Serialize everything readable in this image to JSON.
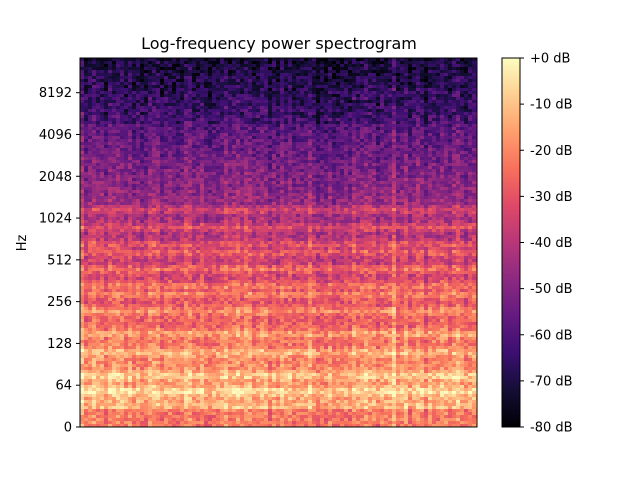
{
  "chart_data": {
    "type": "heatmap",
    "title": "Log-frequency power spectrogram",
    "xlabel": "",
    "ylabel": "Hz",
    "y_scale": "log",
    "y_ticks": [
      "0",
      "64",
      "128",
      "256",
      "512",
      "1024",
      "2048",
      "4096",
      "8192"
    ],
    "y_tick_values": [
      0,
      64,
      128,
      256,
      512,
      1024,
      2048,
      4096,
      8192
    ],
    "x_ticks": [],
    "colormap": "magma",
    "colorbar": {
      "ticks": [
        "+0 dB",
        "-10 dB",
        "-20 dB",
        "-30 dB",
        "-40 dB",
        "-50 dB",
        "-60 dB",
        "-70 dB",
        "-80 dB"
      ],
      "range": [
        -80,
        0
      ],
      "unit": "dB"
    },
    "harmonic_bands_hz": [
      55,
      75,
      110,
      150,
      220,
      290,
      330,
      440,
      580,
      660,
      880,
      1170
    ],
    "legend": "none",
    "grid": false
  },
  "colors": {
    "cmap": [
      "#000004",
      "#140e36",
      "#3b0f70",
      "#641a80",
      "#8c2981",
      "#b73779",
      "#de4968",
      "#f7705c",
      "#fe9f6d",
      "#fecf92",
      "#fcfdbf"
    ]
  }
}
